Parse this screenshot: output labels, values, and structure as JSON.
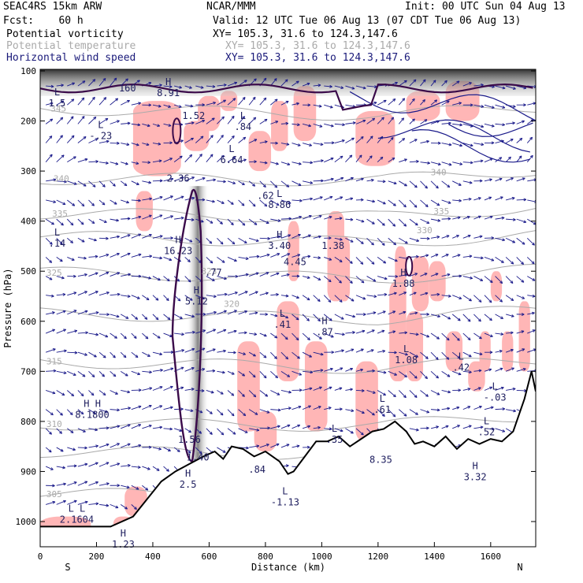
{
  "header": {
    "model": "SEAC4RS 15km ARW",
    "org": "NCAR/MMM",
    "init": "Init: 00 UTC Sun 04 Aug 13",
    "fcst": "Fcst:    60 h",
    "valid": "Valid: 12 UTC Tue 06 Aug 13 (07 CDT Tue 06 Aug 13)",
    "fields": [
      {
        "name": "Potential vorticity",
        "xy": "XY= 105.3, 31.6 to 124.3,147.6",
        "color": "#000000"
      },
      {
        "name": "Potential temperature",
        "xy": "XY= 105.3, 31.6 to 124.3,147.6",
        "color": "#aaaaaa"
      },
      {
        "name": "Horizontal wind speed",
        "xy": "XY= 105.3, 31.6 to 124.3,147.6",
        "color": "#1a1a7a"
      }
    ]
  },
  "chart_data": {
    "type": "cross-section",
    "xlabel": "Distance (km)",
    "ylabel": "Pressure (hPa)",
    "xlim": [
      0,
      1760
    ],
    "ylim": [
      1050,
      100
    ],
    "x_ticks": [
      0,
      200,
      400,
      600,
      800,
      1000,
      1200,
      1400,
      1600
    ],
    "y_ticks": [
      100,
      200,
      300,
      400,
      500,
      600,
      700,
      800,
      900,
      1000
    ],
    "endpoints": {
      "left": "S",
      "right": "N"
    },
    "theta_labels": [
      {
        "text": "345",
        "x": 65,
        "p": 175
      },
      {
        "text": "340",
        "x": 75,
        "p": 315
      },
      {
        "text": "335",
        "x": 70,
        "p": 385
      },
      {
        "text": "325",
        "x": 50,
        "p": 503
      },
      {
        "text": "320",
        "x": 680,
        "p": 565
      },
      {
        "text": "315",
        "x": 50,
        "p": 680
      },
      {
        "text": "310",
        "x": 50,
        "p": 805
      },
      {
        "text": "305",
        "x": 50,
        "p": 945
      },
      {
        "text": "340",
        "x": 1415,
        "p": 302
      },
      {
        "text": "335",
        "x": 1425,
        "p": 380
      },
      {
        "text": "330",
        "x": 1365,
        "p": 418
      },
      {
        "text": "323",
        "x": 600,
        "p": 500
      }
    ],
    "extrema_labels": [
      {
        "mark": "L",
        "value": "1.5",
        "x": 60,
        "p": 155
      },
      {
        "mark": "L",
        "value": "-.23",
        "x": 215,
        "p": 220
      },
      {
        "mark": "H",
        "value": "8.91",
        "x": 455,
        "p": 135
      },
      {
        "mark": "",
        "value": "160",
        "x": 310,
        "p": 125
      },
      {
        "mark": "",
        "value": "1.52",
        "x": 545,
        "p": 180
      },
      {
        "mark": "L",
        "value": "6.64",
        "x": 680,
        "p": 268
      },
      {
        "mark": "L",
        "value": ".84",
        "x": 720,
        "p": 202
      },
      {
        "mark": "",
        "value": "2.36",
        "x": 490,
        "p": 305
      },
      {
        "mark": "",
        "value": ".62",
        "x": 800,
        "p": 340
      },
      {
        "mark": "L",
        "value": "8.86",
        "x": 850,
        "p": 358
      },
      {
        "mark": "L",
        "value": ".14",
        "x": 60,
        "p": 435
      },
      {
        "mark": "H",
        "value": "16.23",
        "x": 490,
        "p": 450
      },
      {
        "mark": "H",
        "value": "3.40",
        "x": 850,
        "p": 440
      },
      {
        "mark": "",
        "value": "1.38",
        "x": 1040,
        "p": 440
      },
      {
        "mark": "",
        "value": "4.45",
        "x": 905,
        "p": 472
      },
      {
        "mark": "",
        "value": ".77",
        "x": 615,
        "p": 493
      },
      {
        "mark": "H",
        "value": "1.88",
        "x": 1290,
        "p": 515
      },
      {
        "mark": "H",
        "value": "5.12",
        "x": 555,
        "p": 551
      },
      {
        "mark": "L",
        "value": ".41",
        "x": 860,
        "p": 597
      },
      {
        "mark": "H",
        "value": ".87",
        "x": 1010,
        "p": 612
      },
      {
        "mark": "L",
        "value": "1.08",
        "x": 1300,
        "p": 668
      },
      {
        "mark": "L",
        "value": ".42",
        "x": 1495,
        "p": 683
      },
      {
        "mark": "L",
        "value": "-.03",
        "x": 1615,
        "p": 743
      },
      {
        "mark": "L",
        "value": ".61",
        "x": 1215,
        "p": 767
      },
      {
        "mark": "H H",
        "value": "8.1800",
        "x": 185,
        "p": 777
      },
      {
        "mark": "L",
        "value": ".52",
        "x": 1585,
        "p": 812
      },
      {
        "mark": "L",
        "value": ".35",
        "x": 1045,
        "p": 827
      },
      {
        "mark": "",
        "value": "1.56",
        "x": 530,
        "p": 827
      },
      {
        "mark": "",
        "value": "1.40",
        "x": 560,
        "p": 862
      },
      {
        "mark": "",
        "value": "8.35",
        "x": 1210,
        "p": 867
      },
      {
        "mark": "H",
        "value": "2.5",
        "x": 525,
        "p": 917
      },
      {
        "mark": "",
        "value": ".84",
        "x": 770,
        "p": 887
      },
      {
        "mark": "H",
        "value": "3.32",
        "x": 1545,
        "p": 902
      },
      {
        "mark": "L",
        "value": "-1.13",
        "x": 870,
        "p": 952
      },
      {
        "mark": "L L",
        "value": "2.1604",
        "x": 130,
        "p": 987
      },
      {
        "mark": "H",
        "value": "1.23",
        "x": 295,
        "p": 1036
      }
    ],
    "grid": false
  },
  "colors": {
    "pv_contour": "#3a0a4a",
    "theta": "#aaaaaa",
    "wind": "#1a1a8a",
    "pv_fill": "#ffb6b6",
    "terrain": "#000000"
  }
}
